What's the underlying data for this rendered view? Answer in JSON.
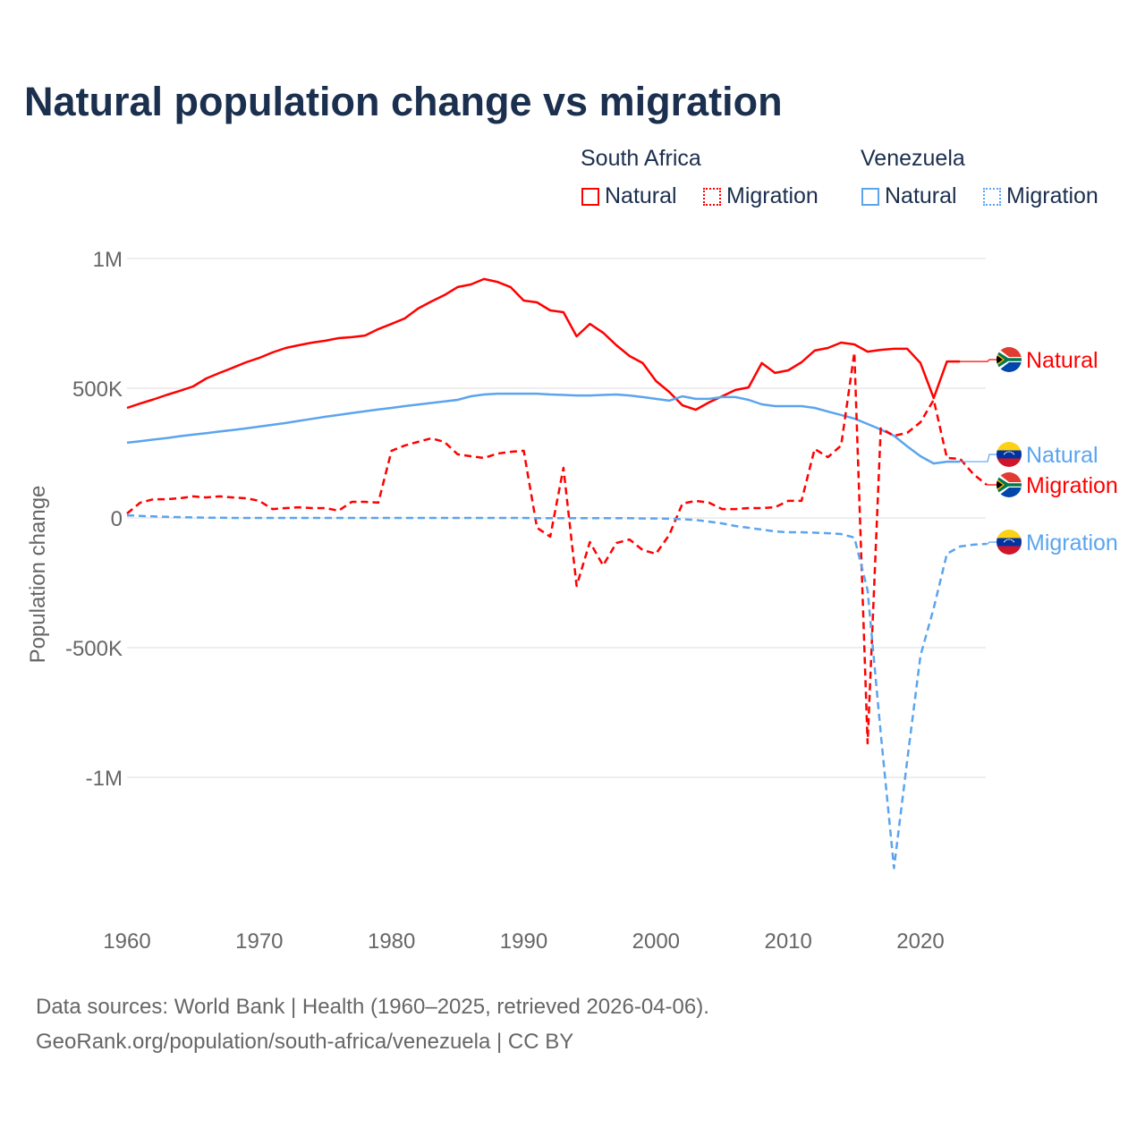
{
  "title": "Natural population change vs migration",
  "legend": {
    "groups": [
      {
        "name": "South Africa",
        "items": [
          "Natural",
          "Migration"
        ]
      },
      {
        "name": "Venezuela",
        "items": [
          "Natural",
          "Migration"
        ]
      }
    ]
  },
  "footer": {
    "line1": "Data sources: World Bank | Health (1960–2025, retrieved 2026-04-06).",
    "line2": "GeoRank.org/population/south-africa/venezuela | CC BY"
  },
  "colors": {
    "south_africa": "#ff0000",
    "venezuela": "#5ba4ee",
    "title": "#1b2f4e",
    "grid": "#e8e8e8",
    "axis_text": "#666666"
  },
  "chart_data": {
    "type": "line",
    "title": "Natural population change vs migration",
    "xlabel": "",
    "ylabel": "Population change",
    "xlim": [
      1960,
      2025
    ],
    "ylim": [
      -1400000,
      1000000
    ],
    "x_ticks": [
      1960,
      1970,
      1980,
      1990,
      2000,
      2010,
      2020
    ],
    "x_tick_labels": [
      "1960",
      "1970",
      "1980",
      "1990",
      "2000",
      "2010",
      "2020"
    ],
    "y_ticks": [
      1000000,
      500000,
      0,
      -500000,
      -1000000
    ],
    "y_tick_labels": [
      "1M",
      "500K",
      "0",
      "-500K",
      "-1M"
    ],
    "grid": true,
    "legend_position": "top-right",
    "series": [
      {
        "name": "South Africa Natural",
        "end_label": "Natural",
        "country": "south_africa",
        "style": "solid",
        "start_year": 1960,
        "values_thousands": [
          424,
          441,
          457,
          474,
          490,
          507,
          538,
          559,
          579,
          600,
          617,
          638,
          655,
          666,
          676,
          683,
          693,
          697,
          703,
          728,
          748,
          769,
          807,
          834,
          859,
          890,
          900,
          921,
          910,
          890,
          838,
          831,
          800,
          793,
          700,
          748,
          714,
          666,
          624,
          597,
          528,
          486,
          434,
          417,
          445,
          469,
          493,
          503,
          597,
          559,
          569,
          600,
          645,
          655,
          676,
          669,
          641,
          648,
          652,
          652,
          597,
          462,
          603,
          603
        ]
      },
      {
        "name": "Venezuela Natural",
        "end_label": "Natural",
        "country": "venezuela",
        "style": "solid",
        "start_year": 1960,
        "values_thousands": [
          290,
          296,
          302,
          308,
          315,
          321,
          327,
          333,
          339,
          345,
          352,
          359,
          366,
          374,
          382,
          390,
          397,
          404,
          411,
          418,
          424,
          431,
          437,
          443,
          449,
          455,
          469,
          476,
          479,
          479,
          479,
          479,
          476,
          474,
          472,
          472,
          474,
          476,
          472,
          466,
          459,
          452,
          469,
          459,
          459,
          466,
          466,
          455,
          438,
          431,
          431,
          431,
          424,
          410,
          397,
          383,
          362,
          341,
          317,
          276,
          238,
          210,
          217,
          217
        ]
      },
      {
        "name": "South Africa Migration",
        "end_label": "Migration",
        "country": "south_africa",
        "style": "dashed",
        "start_year": 1960,
        "values_thousands": [
          17,
          59,
          72,
          72,
          76,
          83,
          79,
          83,
          79,
          76,
          66,
          34,
          38,
          41,
          38,
          38,
          28,
          62,
          62,
          59,
          259,
          279,
          293,
          307,
          293,
          245,
          238,
          231,
          248,
          255,
          259,
          -38,
          -72,
          193,
          -262,
          -93,
          -183,
          -97,
          -83,
          -124,
          -138,
          -66,
          55,
          66,
          59,
          34,
          34,
          38,
          38,
          41,
          66,
          66,
          266,
          234,
          279,
          638,
          -869,
          345,
          317,
          328,
          369,
          455,
          231,
          228,
          169,
          128
        ]
      },
      {
        "name": "Venezuela Migration",
        "end_label": "Migration",
        "country": "venezuela",
        "style": "dashed",
        "start_year": 1960,
        "values_thousands": [
          10,
          8,
          6,
          4,
          3,
          2,
          1,
          1,
          0,
          0,
          0,
          0,
          0,
          0,
          0,
          0,
          0,
          0,
          0,
          0,
          0,
          0,
          0,
          0,
          0,
          0,
          0,
          0,
          0,
          0,
          0,
          -1,
          -1,
          -1,
          -1,
          -1,
          -1,
          -1,
          -1,
          -2,
          -2,
          -3,
          -5,
          -8,
          -14,
          -21,
          -31,
          -38,
          -45,
          -52,
          -55,
          -55,
          -57,
          -59,
          -62,
          -76,
          -279,
          -831,
          -1350,
          -934,
          -531,
          -348,
          -138,
          -110,
          -103,
          -100
        ]
      }
    ]
  }
}
